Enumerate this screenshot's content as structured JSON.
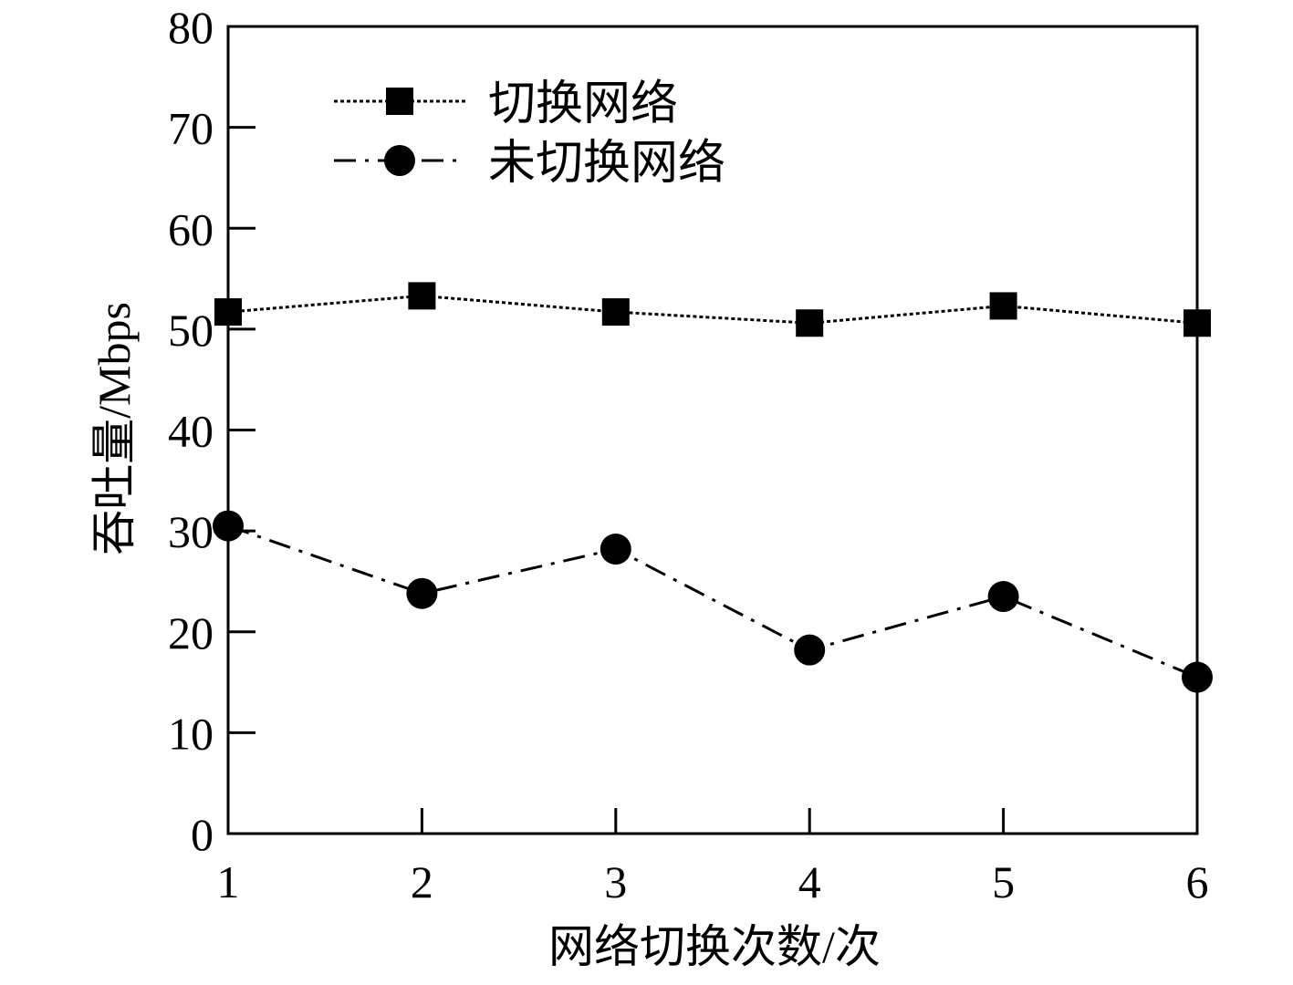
{
  "chart_data": {
    "type": "line",
    "title": "",
    "xlabel": "网络切换次数/次",
    "ylabel": "吞吐量/Mbps",
    "x": [
      1,
      2,
      3,
      4,
      5,
      6
    ],
    "xticks": [
      "1",
      "2",
      "3",
      "4",
      "5",
      "6"
    ],
    "xlim": [
      1,
      6
    ],
    "ylim": [
      0,
      80
    ],
    "yticks": [
      "0",
      "10",
      "20",
      "30",
      "40",
      "50",
      "60",
      "70",
      "80"
    ],
    "grid": false,
    "legend_position": "top-left",
    "series": [
      {
        "name": "切换网络",
        "values": [
          51.7,
          53.3,
          51.7,
          50.6,
          52.3,
          50.6
        ],
        "marker": "square",
        "line_style": "dotted",
        "color": "#000000"
      },
      {
        "name": "未切换网络",
        "values": [
          30.5,
          23.8,
          28.2,
          18.2,
          23.5,
          15.5
        ],
        "marker": "circle",
        "line_style": "dash-dot",
        "color": "#000000"
      }
    ]
  }
}
